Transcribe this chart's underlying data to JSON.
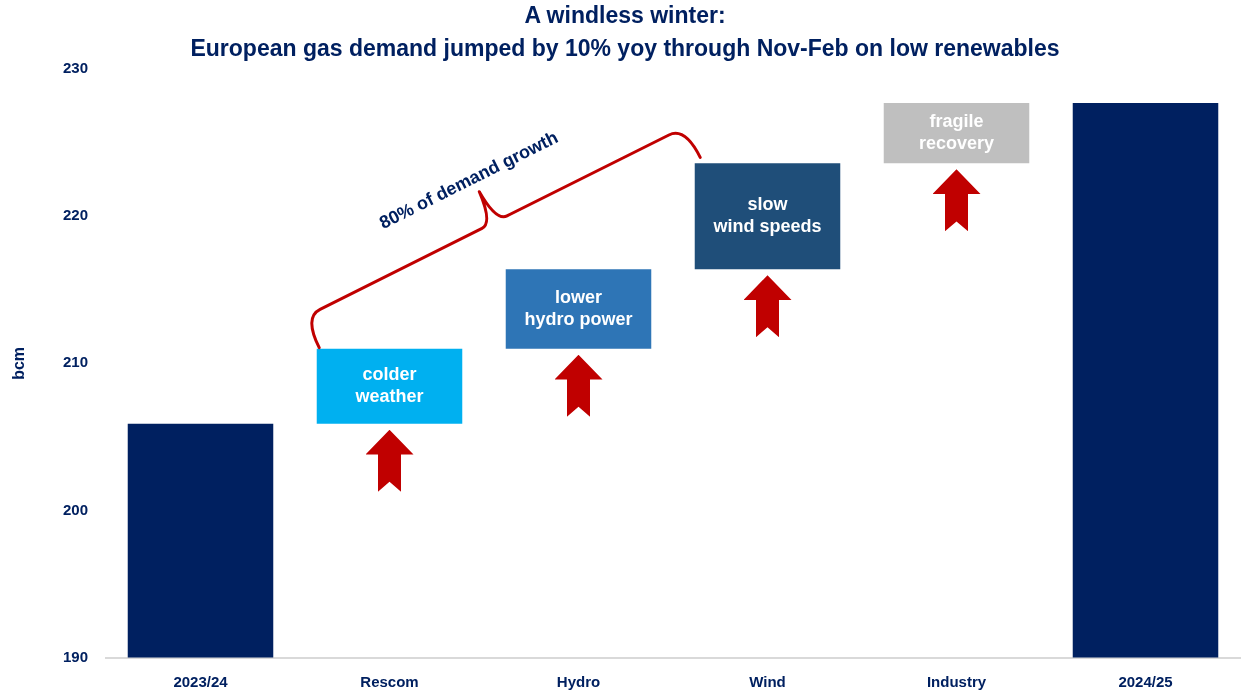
{
  "chart_data": {
    "type": "bar",
    "title": "A windless winter:",
    "subtitle": "European gas demand jumped by 10% yoy through Nov-Feb on low renewables",
    "ylabel": "bcm",
    "categories": [
      "2023/24",
      "Rescom",
      "Hydro",
      "Wind",
      "Industry",
      "2024/25"
    ],
    "values": [
      205.9,
      5.1,
      5.4,
      7.2,
      4.1,
      227.7
    ],
    "base": [
      null,
      205.9,
      211.0,
      216.4,
      223.6,
      null
    ],
    "colors": [
      "#002060",
      "#00b0f0",
      "#2e75b6",
      "#1f4e79",
      "#bfbfbf",
      "#002060"
    ],
    "ylim": [
      190,
      230
    ],
    "yticks": [
      190,
      200,
      210,
      220,
      230
    ],
    "annotations": [
      "colder\nweather",
      "lower\nhydro power",
      "slow\nwind speeds",
      "fragile\nrecovery",
      "80% of demand growth"
    ]
  }
}
